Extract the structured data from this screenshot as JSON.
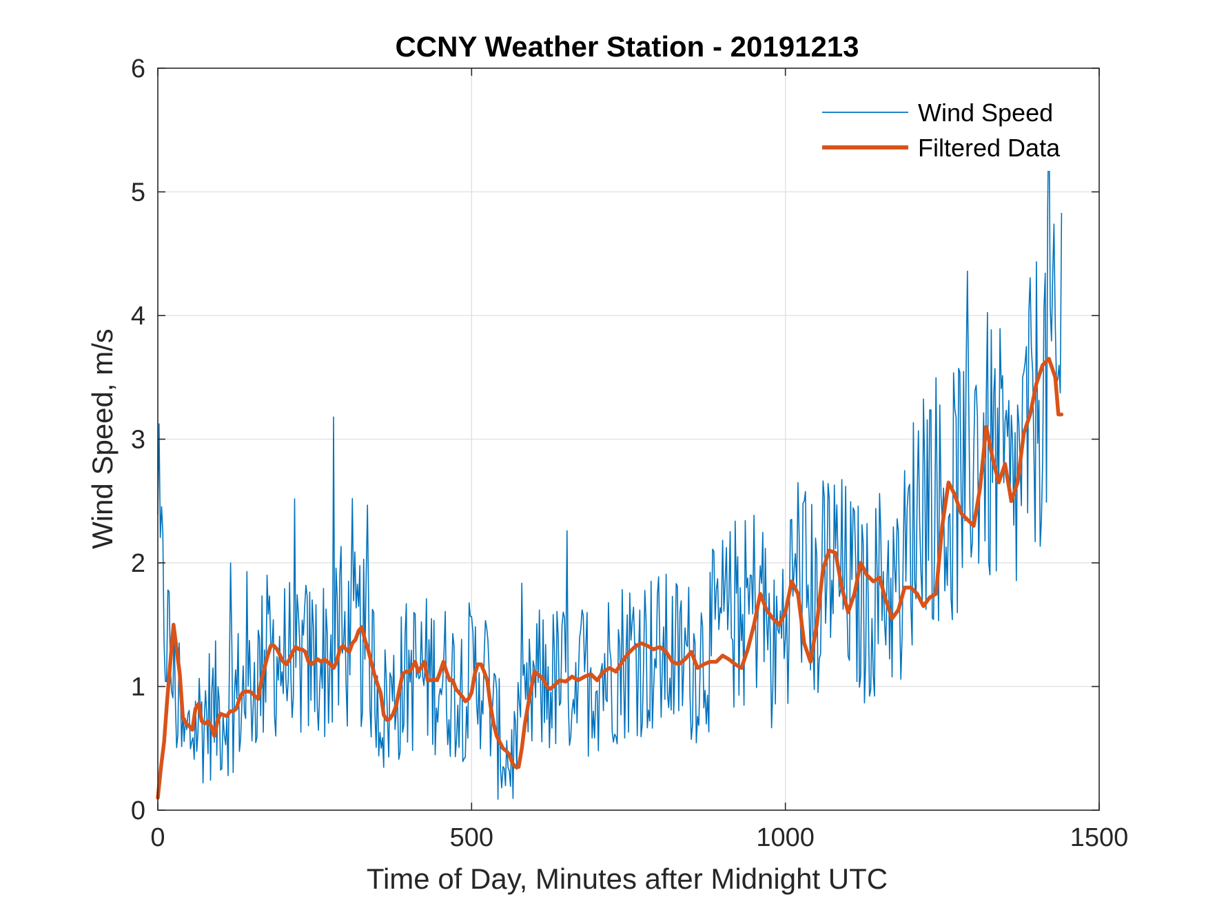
{
  "chart_data": {
    "type": "line",
    "title": "CCNY Weather Station - 20191213",
    "xlabel": "Time of Day, Minutes after Midnight UTC",
    "ylabel": "Wind Speed, m/s",
    "xlim": [
      0,
      1500
    ],
    "ylim": [
      0,
      6
    ],
    "xticks": [
      0,
      500,
      1000,
      1500
    ],
    "xtick_labels": [
      "0",
      "500",
      "1000",
      "1500"
    ],
    "yticks": [
      0,
      1,
      2,
      3,
      4,
      5,
      6
    ],
    "ytick_labels": [
      "0",
      "1",
      "2",
      "3",
      "4",
      "5",
      "6"
    ],
    "grid": true,
    "legend_position": "top-right",
    "series": [
      {
        "name": "Wind Speed",
        "color": "#0072BD",
        "style": "noisy-line",
        "x_start": 0,
        "x_step": 2,
        "x_end": 1440,
        "approx_points": [
          [
            0,
            2.1
          ],
          [
            10,
            1.6
          ],
          [
            20,
            1.2
          ],
          [
            30,
            0.9
          ],
          [
            40,
            0.5
          ],
          [
            50,
            0.6
          ],
          [
            60,
            0.7
          ],
          [
            80,
            0.8
          ],
          [
            100,
            0.8
          ],
          [
            120,
            0.9
          ],
          [
            140,
            0.95
          ],
          [
            160,
            1.1
          ],
          [
            180,
            1.3
          ],
          [
            200,
            1.2
          ],
          [
            240,
            1.2
          ],
          [
            280,
            1.25
          ],
          [
            320,
            1.4
          ],
          [
            340,
            1.2
          ],
          [
            360,
            0.8
          ],
          [
            400,
            1.1
          ],
          [
            440,
            1.1
          ],
          [
            480,
            1.0
          ],
          [
            520,
            1.15
          ],
          [
            540,
            0.6
          ],
          [
            560,
            0.4
          ],
          [
            580,
            0.6
          ],
          [
            600,
            1.0
          ],
          [
            640,
            1.05
          ],
          [
            700,
            1.1
          ],
          [
            760,
            1.3
          ],
          [
            800,
            1.25
          ],
          [
            860,
            1.2
          ],
          [
            900,
            1.5
          ],
          [
            940,
            1.6
          ],
          [
            960,
            1.8
          ],
          [
            980,
            1.2
          ],
          [
            1000,
            1.6
          ],
          [
            1020,
            2.0
          ],
          [
            1050,
            1.6
          ],
          [
            1070,
            2.0
          ],
          [
            1100,
            1.8
          ],
          [
            1130,
            1.6
          ],
          [
            1160,
            1.9
          ],
          [
            1180,
            1.7
          ],
          [
            1200,
            2.2
          ],
          [
            1220,
            2.7
          ],
          [
            1260,
            2.4
          ],
          [
            1300,
            3.0
          ],
          [
            1340,
            2.8
          ],
          [
            1360,
            2.5
          ],
          [
            1380,
            2.9
          ],
          [
            1400,
            3.3
          ],
          [
            1420,
            3.6
          ],
          [
            1440,
            3.2
          ]
        ],
        "notable_peaks": [
          [
            280,
            3.18
          ],
          [
            1420,
            5.76
          ],
          [
            1440,
            4.83
          ]
        ]
      },
      {
        "name": "Filtered Data",
        "color": "#D95319",
        "style": "thick-line",
        "points": [
          [
            0,
            0.1
          ],
          [
            5,
            0.35
          ],
          [
            10,
            0.55
          ],
          [
            15,
            0.9
          ],
          [
            20,
            1.2
          ],
          [
            25,
            1.5
          ],
          [
            30,
            1.3
          ],
          [
            35,
            1.1
          ],
          [
            40,
            0.75
          ],
          [
            45,
            0.7
          ],
          [
            50,
            0.68
          ],
          [
            55,
            0.65
          ],
          [
            60,
            0.82
          ],
          [
            65,
            0.86
          ],
          [
            70,
            0.72
          ],
          [
            75,
            0.7
          ],
          [
            80,
            0.72
          ],
          [
            85,
            0.68
          ],
          [
            90,
            0.6
          ],
          [
            95,
            0.72
          ],
          [
            100,
            0.78
          ],
          [
            105,
            0.77
          ],
          [
            110,
            0.76
          ],
          [
            115,
            0.8
          ],
          [
            120,
            0.8
          ],
          [
            125,
            0.82
          ],
          [
            130,
            0.9
          ],
          [
            135,
            0.95
          ],
          [
            140,
            0.96
          ],
          [
            145,
            0.96
          ],
          [
            150,
            0.95
          ],
          [
            155,
            0.92
          ],
          [
            160,
            0.9
          ],
          [
            165,
            1.05
          ],
          [
            170,
            1.15
          ],
          [
            175,
            1.25
          ],
          [
            180,
            1.33
          ],
          [
            185,
            1.33
          ],
          [
            190,
            1.3
          ],
          [
            195,
            1.25
          ],
          [
            200,
            1.2
          ],
          [
            205,
            1.18
          ],
          [
            210,
            1.22
          ],
          [
            215,
            1.28
          ],
          [
            220,
            1.32
          ],
          [
            225,
            1.3
          ],
          [
            230,
            1.3
          ],
          [
            235,
            1.28
          ],
          [
            240,
            1.2
          ],
          [
            245,
            1.18
          ],
          [
            250,
            1.2
          ],
          [
            255,
            1.22
          ],
          [
            260,
            1.2
          ],
          [
            265,
            1.22
          ],
          [
            270,
            1.2
          ],
          [
            275,
            1.18
          ],
          [
            280,
            1.15
          ],
          [
            285,
            1.2
          ],
          [
            290,
            1.3
          ],
          [
            295,
            1.33
          ],
          [
            300,
            1.3
          ],
          [
            305,
            1.28
          ],
          [
            310,
            1.35
          ],
          [
            315,
            1.38
          ],
          [
            320,
            1.45
          ],
          [
            325,
            1.48
          ],
          [
            330,
            1.38
          ],
          [
            335,
            1.3
          ],
          [
            340,
            1.2
          ],
          [
            345,
            1.1
          ],
          [
            350,
            1.02
          ],
          [
            355,
            0.95
          ],
          [
            360,
            0.77
          ],
          [
            365,
            0.73
          ],
          [
            370,
            0.74
          ],
          [
            375,
            0.78
          ],
          [
            380,
            0.85
          ],
          [
            385,
            0.98
          ],
          [
            390,
            1.1
          ],
          [
            395,
            1.12
          ],
          [
            400,
            1.12
          ],
          [
            405,
            1.15
          ],
          [
            410,
            1.2
          ],
          [
            415,
            1.12
          ],
          [
            420,
            1.16
          ],
          [
            425,
            1.2
          ],
          [
            430,
            1.05
          ],
          [
            435,
            1.05
          ],
          [
            440,
            1.06
          ],
          [
            445,
            1.05
          ],
          [
            450,
            1.12
          ],
          [
            455,
            1.2
          ],
          [
            460,
            1.12
          ],
          [
            465,
            1.05
          ],
          [
            470,
            1.05
          ],
          [
            475,
            0.98
          ],
          [
            480,
            0.95
          ],
          [
            485,
            0.92
          ],
          [
            490,
            0.88
          ],
          [
            495,
            0.9
          ],
          [
            500,
            0.95
          ],
          [
            505,
            1.1
          ],
          [
            510,
            1.18
          ],
          [
            515,
            1.18
          ],
          [
            520,
            1.12
          ],
          [
            525,
            1.05
          ],
          [
            530,
            0.85
          ],
          [
            535,
            0.7
          ],
          [
            540,
            0.6
          ],
          [
            545,
            0.55
          ],
          [
            550,
            0.5
          ],
          [
            555,
            0.48
          ],
          [
            560,
            0.45
          ],
          [
            565,
            0.38
          ],
          [
            570,
            0.35
          ],
          [
            575,
            0.35
          ],
          [
            580,
            0.5
          ],
          [
            585,
            0.7
          ],
          [
            590,
            0.85
          ],
          [
            595,
            0.98
          ],
          [
            600,
            1.12
          ],
          [
            605,
            1.1
          ],
          [
            610,
            1.08
          ],
          [
            615,
            1.05
          ],
          [
            620,
            1.0
          ],
          [
            625,
            0.98
          ],
          [
            630,
            1.0
          ],
          [
            640,
            1.05
          ],
          [
            650,
            1.04
          ],
          [
            660,
            1.08
          ],
          [
            670,
            1.05
          ],
          [
            680,
            1.08
          ],
          [
            690,
            1.1
          ],
          [
            700,
            1.05
          ],
          [
            710,
            1.12
          ],
          [
            720,
            1.15
          ],
          [
            730,
            1.12
          ],
          [
            740,
            1.2
          ],
          [
            750,
            1.27
          ],
          [
            760,
            1.32
          ],
          [
            770,
            1.35
          ],
          [
            780,
            1.33
          ],
          [
            790,
            1.3
          ],
          [
            800,
            1.32
          ],
          [
            810,
            1.28
          ],
          [
            820,
            1.2
          ],
          [
            830,
            1.18
          ],
          [
            840,
            1.22
          ],
          [
            850,
            1.28
          ],
          [
            860,
            1.15
          ],
          [
            870,
            1.18
          ],
          [
            880,
            1.2
          ],
          [
            890,
            1.2
          ],
          [
            900,
            1.25
          ],
          [
            910,
            1.22
          ],
          [
            920,
            1.18
          ],
          [
            930,
            1.15
          ],
          [
            940,
            1.3
          ],
          [
            950,
            1.5
          ],
          [
            960,
            1.75
          ],
          [
            970,
            1.62
          ],
          [
            980,
            1.55
          ],
          [
            990,
            1.5
          ],
          [
            1000,
            1.6
          ],
          [
            1010,
            1.85
          ],
          [
            1020,
            1.75
          ],
          [
            1030,
            1.35
          ],
          [
            1040,
            1.2
          ],
          [
            1050,
            1.5
          ],
          [
            1060,
            1.95
          ],
          [
            1070,
            2.1
          ],
          [
            1080,
            2.08
          ],
          [
            1090,
            1.8
          ],
          [
            1100,
            1.6
          ],
          [
            1110,
            1.75
          ],
          [
            1120,
            2.0
          ],
          [
            1130,
            1.9
          ],
          [
            1140,
            1.85
          ],
          [
            1150,
            1.88
          ],
          [
            1160,
            1.7
          ],
          [
            1170,
            1.55
          ],
          [
            1180,
            1.62
          ],
          [
            1190,
            1.8
          ],
          [
            1200,
            1.8
          ],
          [
            1210,
            1.75
          ],
          [
            1220,
            1.65
          ],
          [
            1230,
            1.72
          ],
          [
            1240,
            1.75
          ],
          [
            1250,
            2.3
          ],
          [
            1260,
            2.65
          ],
          [
            1270,
            2.55
          ],
          [
            1280,
            2.4
          ],
          [
            1290,
            2.35
          ],
          [
            1300,
            2.3
          ],
          [
            1310,
            2.6
          ],
          [
            1320,
            3.1
          ],
          [
            1330,
            2.85
          ],
          [
            1340,
            2.65
          ],
          [
            1350,
            2.8
          ],
          [
            1360,
            2.5
          ],
          [
            1370,
            2.65
          ],
          [
            1380,
            3.05
          ],
          [
            1390,
            3.2
          ],
          [
            1400,
            3.45
          ],
          [
            1410,
            3.6
          ],
          [
            1420,
            3.65
          ],
          [
            1430,
            3.5
          ],
          [
            1435,
            3.2
          ],
          [
            1440,
            3.2
          ]
        ]
      }
    ]
  }
}
